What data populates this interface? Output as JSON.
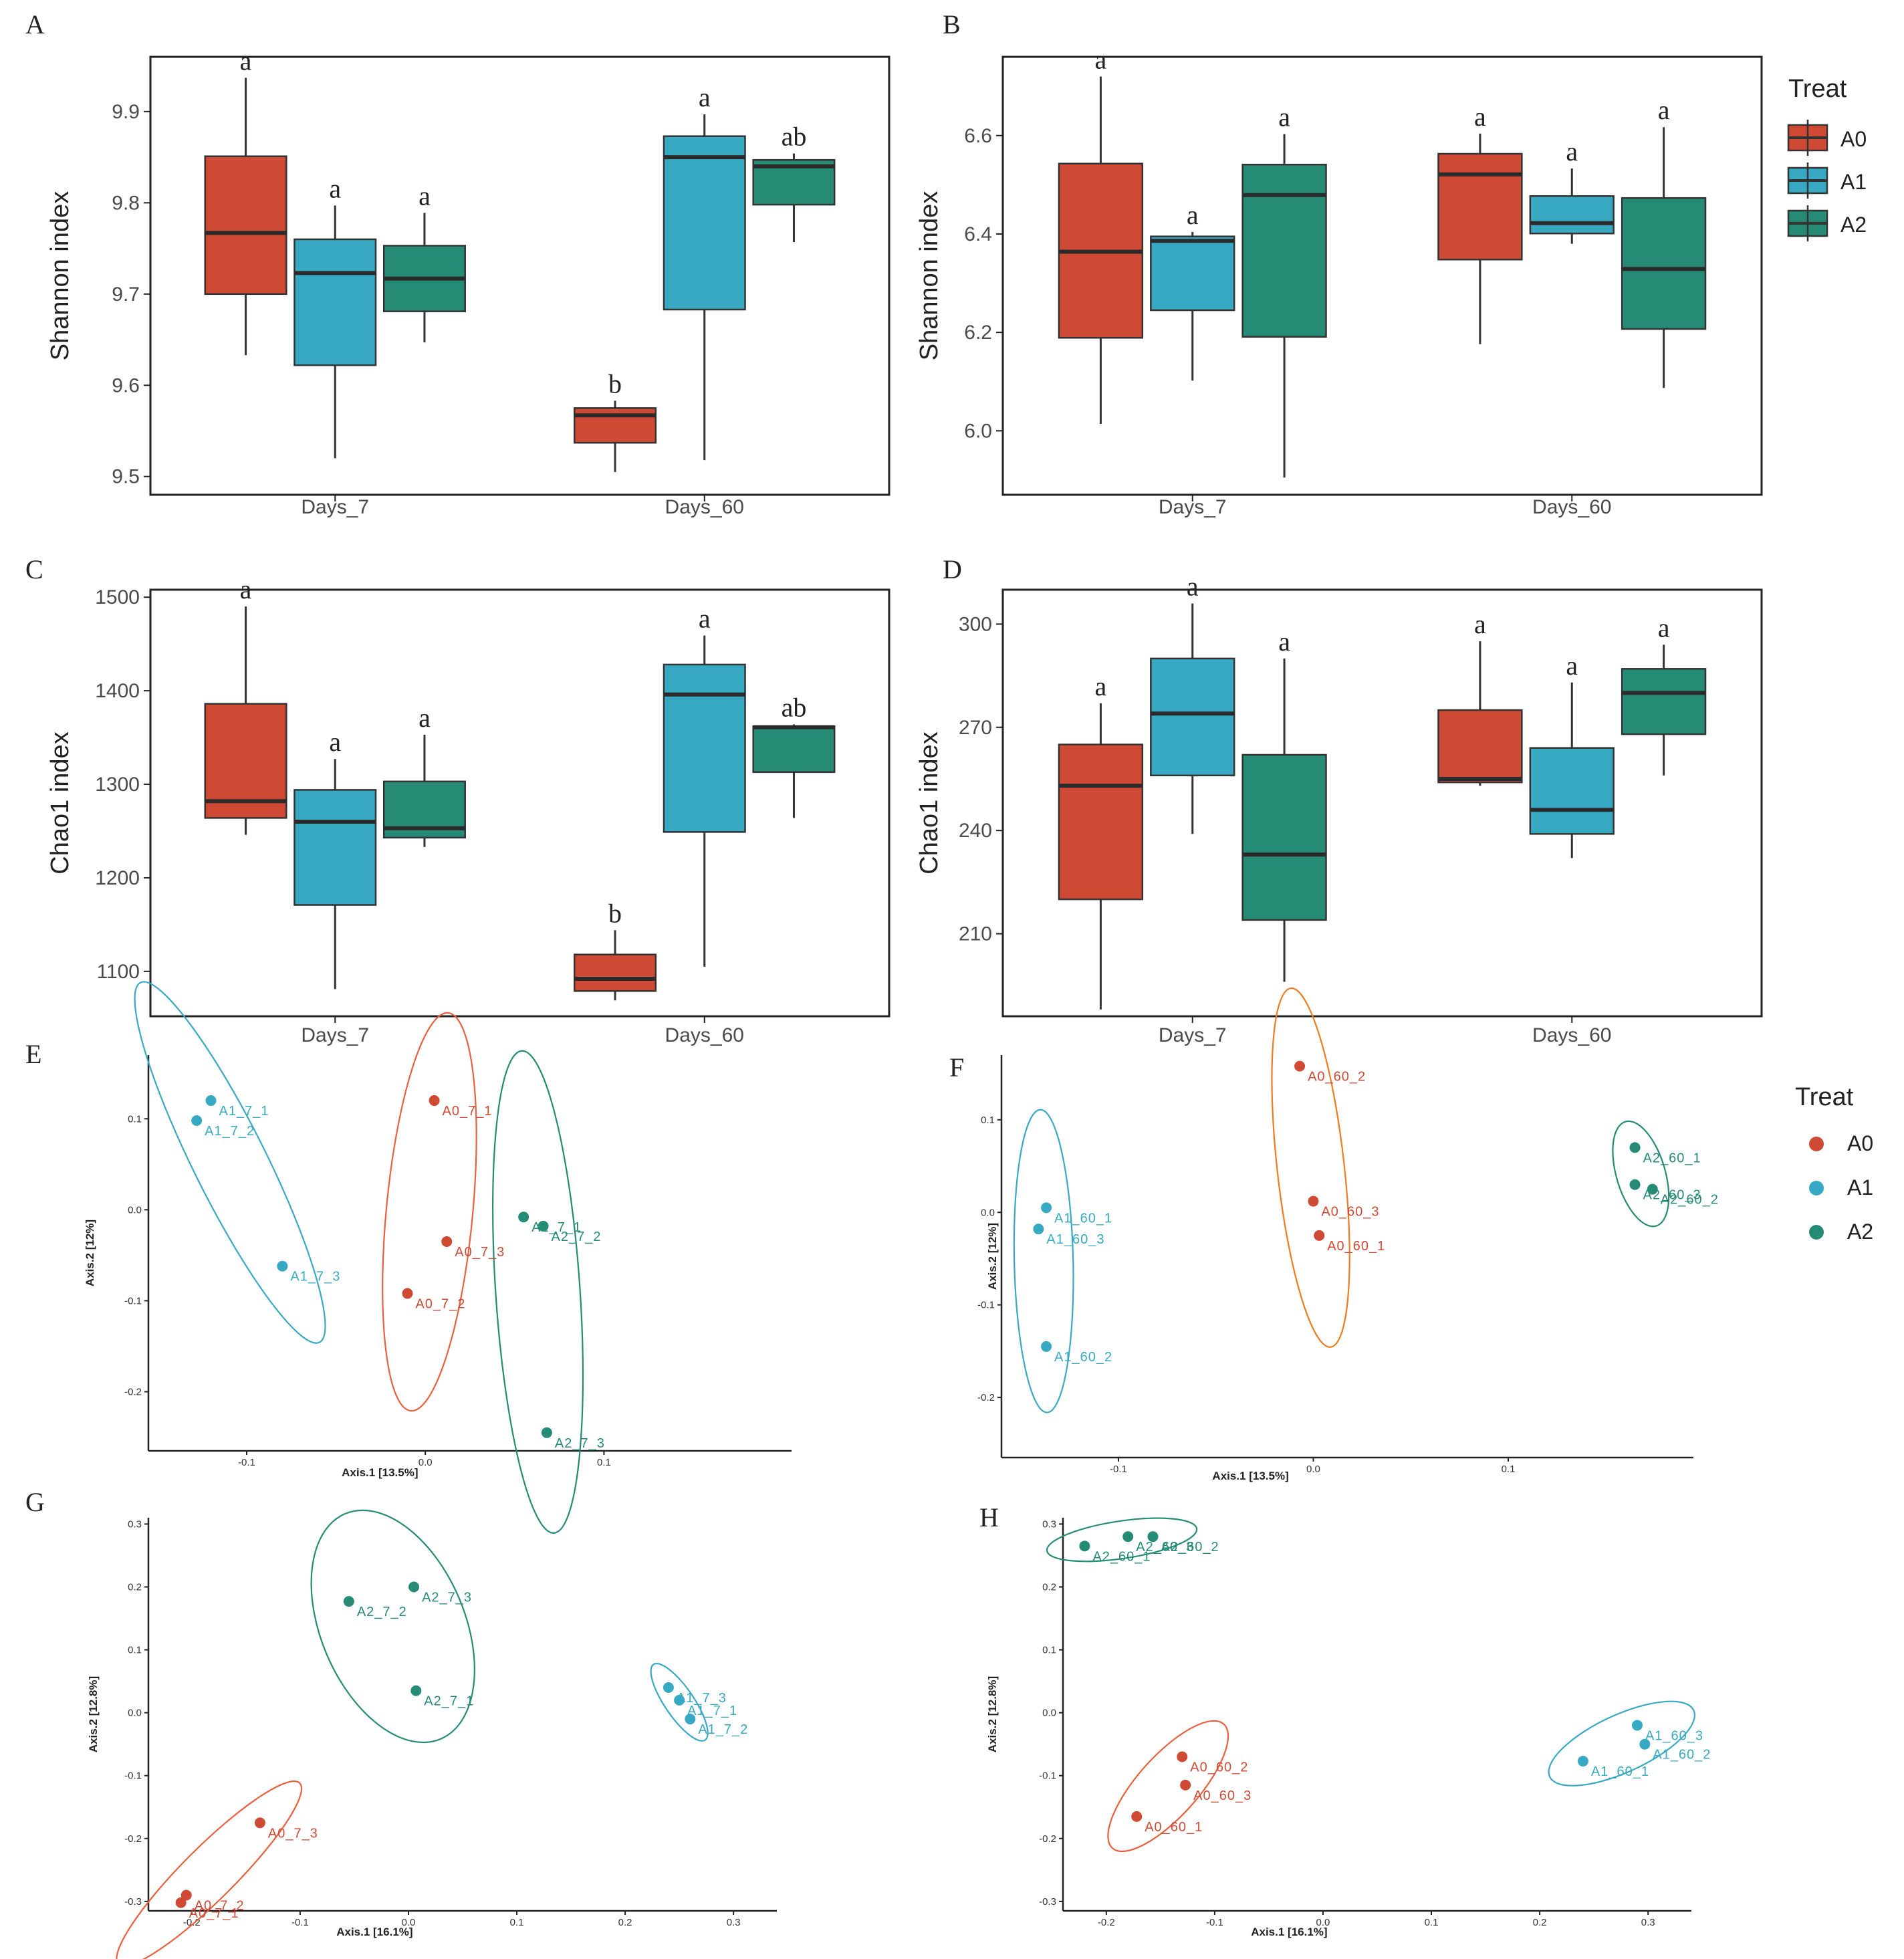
{
  "colors": {
    "A0": "#CF4A34",
    "A1": "#38A9C2",
    "A2": "#268B74",
    "median": "#2b2b2b",
    "axis": "#222222",
    "ellipse_A0": "#E8603E",
    "ellipse_A0_F": "#F07A1E"
  },
  "legend": {
    "title": "Treat",
    "entries": [
      "A0",
      "A1",
      "A2"
    ]
  },
  "chart_data": [
    {
      "panel": "A",
      "type": "box",
      "title": "",
      "xlabel": "",
      "ylabel": "Shannon index",
      "categories": [
        "Days_7",
        "Days_60"
      ],
      "ylim": [
        9.48,
        9.96
      ],
      "yticks": [
        9.5,
        9.6,
        9.7,
        9.8,
        9.9
      ],
      "groups": [
        "A0",
        "A1",
        "A2"
      ],
      "boxes": [
        {
          "cat": 0,
          "grp": "A0",
          "min": 9.633,
          "q1": 9.7,
          "median": 9.767,
          "q3": 9.851,
          "max": 9.937,
          "letter": "a"
        },
        {
          "cat": 0,
          "grp": "A1",
          "min": 9.52,
          "q1": 9.622,
          "median": 9.723,
          "q3": 9.76,
          "max": 9.797,
          "letter": "a"
        },
        {
          "cat": 0,
          "grp": "A2",
          "min": 9.647,
          "q1": 9.681,
          "median": 9.717,
          "q3": 9.753,
          "max": 9.789,
          "letter": "a"
        },
        {
          "cat": 1,
          "grp": "A0",
          "min": 9.505,
          "q1": 9.537,
          "median": 9.567,
          "q3": 9.575,
          "max": 9.583,
          "letter": "b"
        },
        {
          "cat": 1,
          "grp": "A1",
          "min": 9.518,
          "q1": 9.683,
          "median": 9.85,
          "q3": 9.873,
          "max": 9.897,
          "letter": "a"
        },
        {
          "cat": 1,
          "grp": "A2",
          "min": 9.757,
          "q1": 9.798,
          "median": 9.84,
          "q3": 9.847,
          "max": 9.854,
          "letter": "ab"
        }
      ]
    },
    {
      "panel": "B",
      "type": "box",
      "title": "",
      "xlabel": "",
      "ylabel": "Shannon index",
      "categories": [
        "Days_7",
        "Days_60"
      ],
      "ylim": [
        5.87,
        6.76
      ],
      "yticks": [
        6.0,
        6.2,
        6.4,
        6.6
      ],
      "groups": [
        "A0",
        "A1",
        "A2"
      ],
      "boxes": [
        {
          "cat": 0,
          "grp": "A0",
          "min": 6.014,
          "q1": 6.189,
          "median": 6.364,
          "q3": 6.543,
          "max": 6.72,
          "letter": "a"
        },
        {
          "cat": 0,
          "grp": "A1",
          "min": 6.102,
          "q1": 6.245,
          "median": 6.386,
          "q3": 6.395,
          "max": 6.404,
          "letter": "a"
        },
        {
          "cat": 0,
          "grp": "A2",
          "min": 5.905,
          "q1": 6.191,
          "median": 6.479,
          "q3": 6.541,
          "max": 6.603,
          "letter": "a"
        },
        {
          "cat": 1,
          "grp": "A0",
          "min": 6.176,
          "q1": 6.348,
          "median": 6.521,
          "q3": 6.563,
          "max": 6.604,
          "letter": "a"
        },
        {
          "cat": 1,
          "grp": "A1",
          "min": 6.38,
          "q1": 6.401,
          "median": 6.422,
          "q3": 6.477,
          "max": 6.533,
          "letter": "a"
        },
        {
          "cat": 1,
          "grp": "A2",
          "min": 6.087,
          "q1": 6.207,
          "median": 6.329,
          "q3": 6.473,
          "max": 6.617,
          "letter": "a"
        }
      ]
    },
    {
      "panel": "C",
      "type": "box",
      "title": "",
      "xlabel": "",
      "ylabel": "Chao1 index",
      "categories": [
        "Days_7",
        "Days_60"
      ],
      "ylim": [
        1052,
        1508
      ],
      "yticks": [
        1100,
        1200,
        1300,
        1400,
        1500
      ],
      "groups": [
        "A0",
        "A1",
        "A2"
      ],
      "boxes": [
        {
          "cat": 0,
          "grp": "A0",
          "min": 1246,
          "q1": 1264,
          "median": 1282,
          "q3": 1386,
          "max": 1490,
          "letter": "a"
        },
        {
          "cat": 0,
          "grp": "A1",
          "min": 1081,
          "q1": 1171,
          "median": 1260,
          "q3": 1294,
          "max": 1327,
          "letter": "a"
        },
        {
          "cat": 0,
          "grp": "A2",
          "min": 1233,
          "q1": 1243,
          "median": 1253,
          "q3": 1303,
          "max": 1353,
          "letter": "a"
        },
        {
          "cat": 1,
          "grp": "A0",
          "min": 1069,
          "q1": 1079,
          "median": 1092,
          "q3": 1118,
          "max": 1144,
          "letter": "b"
        },
        {
          "cat": 1,
          "grp": "A1",
          "min": 1105,
          "q1": 1249,
          "median": 1396,
          "q3": 1428,
          "max": 1459,
          "letter": "a"
        },
        {
          "cat": 1,
          "grp": "A2",
          "min": 1264,
          "q1": 1313,
          "median": 1361,
          "q3": 1362,
          "max": 1364,
          "letter": "ab"
        }
      ]
    },
    {
      "panel": "D",
      "type": "box",
      "title": "",
      "xlabel": "",
      "ylabel": "Chao1 index",
      "categories": [
        "Days_7",
        "Days_60"
      ],
      "ylim": [
        186,
        310
      ],
      "yticks": [
        210,
        240,
        270,
        300
      ],
      "groups": [
        "A0",
        "A1",
        "A2"
      ],
      "boxes": [
        {
          "cat": 0,
          "grp": "A0",
          "min": 188,
          "q1": 220,
          "median": 253,
          "q3": 265,
          "max": 277,
          "letter": "a"
        },
        {
          "cat": 0,
          "grp": "A1",
          "min": 239,
          "q1": 256,
          "median": 274,
          "q3": 290,
          "max": 306,
          "letter": "a"
        },
        {
          "cat": 0,
          "grp": "A2",
          "min": 196,
          "q1": 214,
          "median": 233,
          "q3": 262,
          "max": 290,
          "letter": "a"
        },
        {
          "cat": 1,
          "grp": "A0",
          "min": 253,
          "q1": 254,
          "median": 255,
          "q3": 275,
          "max": 295,
          "letter": "a"
        },
        {
          "cat": 1,
          "grp": "A1",
          "min": 232,
          "q1": 239,
          "median": 246,
          "q3": 264,
          "max": 283,
          "letter": "a"
        },
        {
          "cat": 1,
          "grp": "A2",
          "min": 256,
          "q1": 268,
          "median": 280,
          "q3": 287,
          "max": 294,
          "letter": "a"
        }
      ]
    },
    {
      "panel": "E",
      "type": "scatter",
      "title": "",
      "xlabel": "Axis.1  [13.5%]",
      "ylabel": "Axis.2  [12%]",
      "xlim": [
        -0.155,
        0.205
      ],
      "ylim": [
        -0.265,
        0.17
      ],
      "xticks": [
        -0.1,
        0.0,
        0.1
      ],
      "yticks": [
        -0.2,
        -0.1,
        0.0,
        0.1
      ],
      "points": [
        {
          "grp": "A1",
          "label": "A1_7_1",
          "x": -0.12,
          "y": 0.12
        },
        {
          "grp": "A1",
          "label": "A1_7_2",
          "x": -0.128,
          "y": 0.098
        },
        {
          "grp": "A1",
          "label": "A1_7_3",
          "x": -0.08,
          "y": -0.062
        },
        {
          "grp": "A0",
          "label": "A0_7_1",
          "x": 0.005,
          "y": 0.12
        },
        {
          "grp": "A0",
          "label": "A0_7_3",
          "x": 0.012,
          "y": -0.035
        },
        {
          "grp": "A0",
          "label": "A0_7_2",
          "x": -0.01,
          "y": -0.092
        },
        {
          "grp": "A2",
          "label": "A2_7_1",
          "x": 0.055,
          "y": -0.008
        },
        {
          "grp": "A2",
          "label": "A2_7_2",
          "x": 0.066,
          "y": -0.018
        },
        {
          "grp": "A2",
          "label": "A2_7_3",
          "x": 0.068,
          "y": -0.245
        }
      ]
    },
    {
      "panel": "F",
      "type": "scatter",
      "title": "",
      "xlabel": "Axis.1  [13.5%]",
      "ylabel": "Axis.2  [12%]",
      "xlim": [
        -0.16,
        0.195
      ],
      "ylim": [
        -0.265,
        0.17
      ],
      "xticks": [
        -0.1,
        0.0,
        0.1
      ],
      "yticks": [
        -0.2,
        -0.1,
        0.0,
        0.1
      ],
      "points": [
        {
          "grp": "A0",
          "label": "A0_60_2",
          "x": -0.007,
          "y": 0.158
        },
        {
          "grp": "A0",
          "label": "A0_60_3",
          "x": 0.0,
          "y": 0.012
        },
        {
          "grp": "A0",
          "label": "A0_60_1",
          "x": 0.003,
          "y": -0.025
        },
        {
          "grp": "A1",
          "label": "A1_60_1",
          "x": -0.137,
          "y": 0.005
        },
        {
          "grp": "A1",
          "label": "A1_60_3",
          "x": -0.141,
          "y": -0.018
        },
        {
          "grp": "A1",
          "label": "A1_60_2",
          "x": -0.137,
          "y": -0.145
        },
        {
          "grp": "A2",
          "label": "A2_60_1",
          "x": 0.165,
          "y": 0.07
        },
        {
          "grp": "A2",
          "label": "A2_60_3",
          "x": 0.165,
          "y": 0.03
        },
        {
          "grp": "A2",
          "label": "A2_60_2",
          "x": 0.174,
          "y": 0.025
        }
      ]
    },
    {
      "panel": "G",
      "type": "scatter",
      "title": "",
      "xlabel": "Axis.1  [16.1%]",
      "ylabel": "Axis.2  [12.8%]",
      "xlim": [
        -0.24,
        0.34
      ],
      "ylim": [
        -0.315,
        0.31
      ],
      "xticks": [
        -0.2,
        -0.1,
        0.0,
        0.1,
        0.2,
        0.3
      ],
      "yticks": [
        -0.3,
        -0.2,
        -0.1,
        0.0,
        0.1,
        0.2,
        0.3
      ],
      "points": [
        {
          "grp": "A2",
          "label": "A2_7_3",
          "x": 0.005,
          "y": 0.2
        },
        {
          "grp": "A2",
          "label": "A2_7_2",
          "x": -0.055,
          "y": 0.177
        },
        {
          "grp": "A2",
          "label": "A2_7_1",
          "x": 0.007,
          "y": 0.035
        },
        {
          "grp": "A1",
          "label": "A1_7_3",
          "x": 0.24,
          "y": 0.04
        },
        {
          "grp": "A1",
          "label": "A1_7_1",
          "x": 0.25,
          "y": 0.02
        },
        {
          "grp": "A1",
          "label": "A1_7_2",
          "x": 0.26,
          "y": -0.01
        },
        {
          "grp": "A0",
          "label": "A0_7_3",
          "x": -0.137,
          "y": -0.175
        },
        {
          "grp": "A0",
          "label": "A0_7_2",
          "x": -0.205,
          "y": -0.29
        },
        {
          "grp": "A0",
          "label": "A0_7_1",
          "x": -0.21,
          "y": -0.302
        }
      ]
    },
    {
      "panel": "H",
      "type": "scatter",
      "title": "",
      "xlabel": "Axis.1  [16.1%]",
      "ylabel": "Axis.2  [12.8%]",
      "xlim": [
        -0.24,
        0.34
      ],
      "ylim": [
        -0.315,
        0.31
      ],
      "xticks": [
        -0.2,
        -0.1,
        0.0,
        0.1,
        0.2,
        0.3
      ],
      "yticks": [
        -0.3,
        -0.2,
        -0.1,
        0.0,
        0.1,
        0.2,
        0.3
      ],
      "points": [
        {
          "grp": "A2",
          "label": "A2_60_3",
          "x": -0.18,
          "y": 0.28
        },
        {
          "grp": "A2",
          "label": "A2_60_1",
          "x": -0.22,
          "y": 0.265
        },
        {
          "grp": "A2",
          "label": "A2_60_2",
          "x": -0.157,
          "y": 0.28
        },
        {
          "grp": "A1",
          "label": "A1_60_3",
          "x": 0.29,
          "y": -0.02
        },
        {
          "grp": "A1",
          "label": "A1_60_2",
          "x": 0.297,
          "y": -0.05
        },
        {
          "grp": "A1",
          "label": "A1_60_1",
          "x": 0.24,
          "y": -0.077
        },
        {
          "grp": "A0",
          "label": "A0_60_2",
          "x": -0.13,
          "y": -0.07
        },
        {
          "grp": "A0",
          "label": "A0_60_3",
          "x": -0.127,
          "y": -0.115
        },
        {
          "grp": "A0",
          "label": "A0_60_1",
          "x": -0.172,
          "y": -0.165
        }
      ]
    }
  ]
}
